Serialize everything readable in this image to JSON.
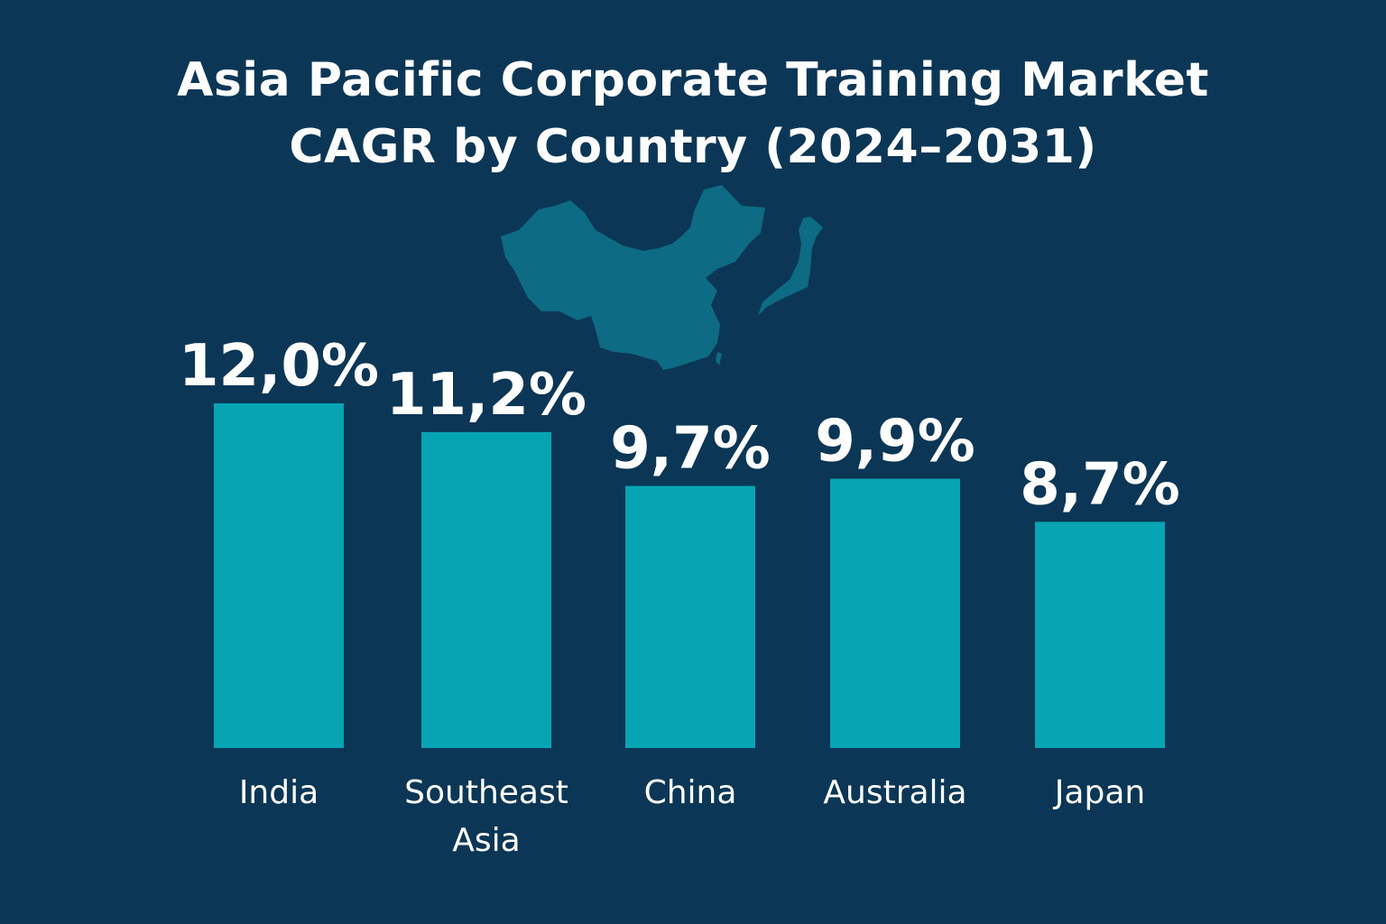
{
  "chart_data": {
    "type": "bar",
    "title_lines": [
      "Asia Pacific Corporate Training Market",
      "CAGR by Country (2024–2031)"
    ],
    "categories": [
      "India",
      "Southeast Asia",
      "China",
      "Australia",
      "Japan"
    ],
    "values": [
      12.0,
      11.2,
      9.7,
      9.9,
      8.7
    ],
    "value_labels": [
      "12,0%",
      "11,2%",
      "9,7%",
      "9,9%",
      "8,7%"
    ],
    "xlabel": "",
    "ylabel": "",
    "ylim": [
      2.4,
      12
    ],
    "grid": false,
    "colors": {
      "background": "#0b3655",
      "bar": "#07a5b4",
      "map": "#0e6b84",
      "text": "#ffffff"
    }
  }
}
